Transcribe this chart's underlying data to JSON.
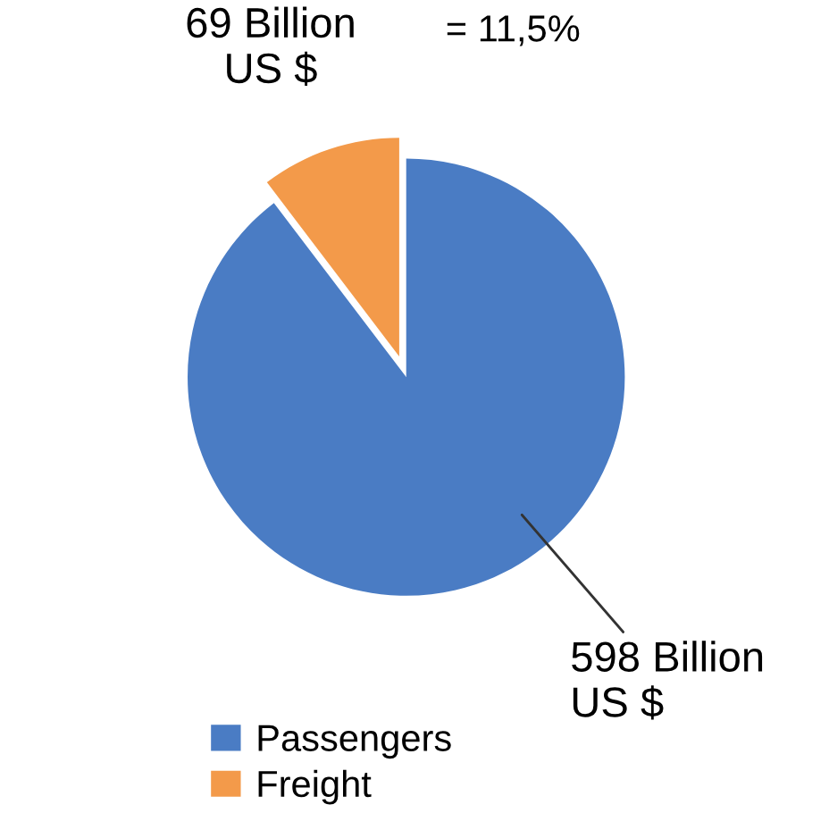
{
  "chart_data": {
    "type": "pie",
    "categories": [
      "Passengers",
      "Freight"
    ],
    "values": [
      598,
      69
    ],
    "colors": [
      "#4a7cc4",
      "#f39a4a"
    ],
    "value_labels": [
      "598 Billion\nUS $",
      "69 Billion\nUS $"
    ],
    "annotations": [
      "= 11,5%"
    ],
    "legend": "bottom"
  }
}
